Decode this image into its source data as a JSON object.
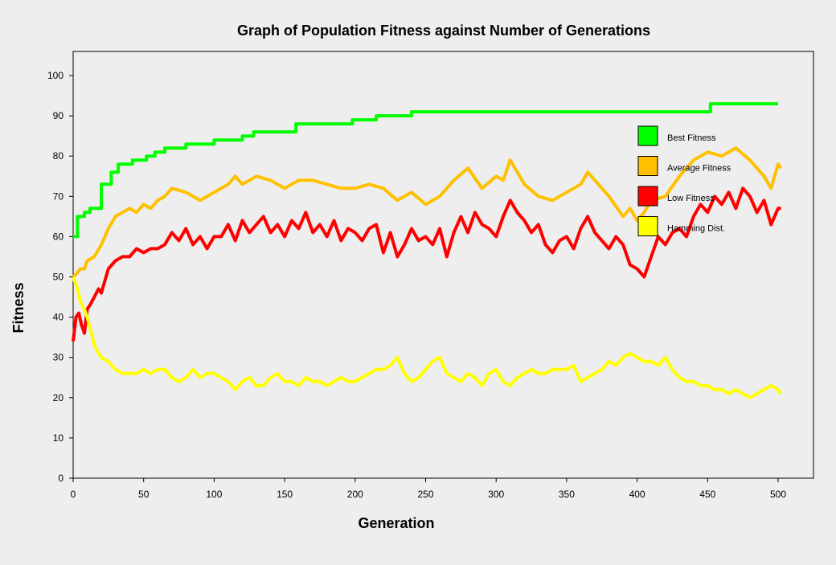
{
  "chart_data": {
    "type": "line",
    "title": "Graph of Population Fitness against Number of Generations",
    "xlabel": "Generation",
    "ylabel": "Fitness",
    "xlim": [
      0,
      520
    ],
    "ylim": [
      0,
      106
    ],
    "x_ticks": [
      0,
      50,
      100,
      150,
      200,
      250,
      300,
      350,
      400,
      450,
      500
    ],
    "y_ticks": [
      0,
      10,
      20,
      30,
      40,
      50,
      60,
      70,
      80,
      90,
      100
    ],
    "x_tick_labels": [
      "0",
      "50",
      "100",
      "150",
      "200",
      "250",
      "300",
      "350",
      "400",
      "450",
      "500"
    ],
    "y_tick_labels": [
      "0",
      "10",
      "20",
      "30",
      "40",
      "50",
      "60",
      "70",
      "80",
      "90",
      "100"
    ],
    "grid": false,
    "legend_position": "top-right",
    "series": [
      {
        "name": "Best Fitness",
        "color": "#00ff00",
        "step": true,
        "x": [
          0,
          3,
          8,
          12,
          20,
          27,
          32,
          42,
          52,
          58,
          65,
          70,
          80,
          100,
          110,
          120,
          128,
          140,
          158,
          175,
          198,
          205,
          215,
          235,
          240,
          300,
          350,
          400,
          448,
          452,
          500
        ],
        "y": [
          60,
          65,
          66,
          67,
          73,
          76,
          78,
          79,
          80,
          81,
          82,
          82,
          83,
          84,
          84,
          85,
          86,
          86,
          88,
          88,
          89,
          89,
          90,
          90,
          91,
          91,
          91,
          91,
          91,
          93,
          93
        ]
      },
      {
        "name": "Average Fitness",
        "color": "#ffc000",
        "x": [
          0,
          3,
          5,
          8,
          10,
          15,
          20,
          25,
          30,
          35,
          40,
          45,
          50,
          55,
          60,
          65,
          70,
          80,
          90,
          100,
          110,
          115,
          120,
          130,
          140,
          150,
          160,
          170,
          180,
          190,
          200,
          210,
          220,
          230,
          240,
          250,
          260,
          270,
          280,
          290,
          300,
          305,
          310,
          320,
          330,
          340,
          350,
          360,
          365,
          370,
          380,
          390,
          395,
          400,
          405,
          410,
          420,
          430,
          440,
          450,
          460,
          470,
          480,
          490,
          495,
          500,
          502
        ],
        "y": [
          50,
          51,
          52,
          52,
          54,
          55,
          58,
          62,
          65,
          66,
          67,
          66,
          68,
          67,
          69,
          70,
          72,
          71,
          69,
          71,
          73,
          75,
          73,
          75,
          74,
          72,
          74,
          74,
          73,
          72,
          72,
          73,
          72,
          69,
          71,
          68,
          70,
          74,
          77,
          72,
          75,
          74,
          79,
          73,
          70,
          69,
          71,
          73,
          76,
          74,
          70,
          65,
          67,
          64,
          66,
          69,
          70,
          75,
          79,
          81,
          80,
          82,
          79,
          75,
          72,
          78,
          77
        ]
      },
      {
        "name": "Low Fitness",
        "color": "#ff0000",
        "x": [
          0,
          2,
          4,
          6,
          8,
          10,
          12,
          15,
          18,
          20,
          25,
          30,
          35,
          40,
          45,
          50,
          55,
          60,
          65,
          70,
          75,
          80,
          85,
          90,
          95,
          100,
          105,
          110,
          115,
          120,
          125,
          130,
          135,
          140,
          145,
          150,
          155,
          160,
          165,
          170,
          175,
          180,
          185,
          190,
          195,
          200,
          205,
          210,
          215,
          220,
          225,
          230,
          235,
          240,
          245,
          250,
          255,
          260,
          265,
          270,
          275,
          280,
          285,
          290,
          295,
          300,
          305,
          310,
          315,
          320,
          325,
          330,
          335,
          340,
          345,
          350,
          355,
          360,
          365,
          370,
          375,
          380,
          385,
          390,
          395,
          400,
          405,
          410,
          415,
          420,
          425,
          430,
          435,
          440,
          445,
          450,
          455,
          460,
          465,
          470,
          475,
          480,
          485,
          490,
          495,
          500,
          502
        ],
        "y": [
          34,
          40,
          41,
          38,
          36,
          42,
          43,
          45,
          47,
          46,
          52,
          54,
          55,
          55,
          57,
          56,
          57,
          57,
          58,
          61,
          59,
          62,
          58,
          60,
          57,
          60,
          60,
          63,
          59,
          64,
          61,
          63,
          65,
          61,
          63,
          60,
          64,
          62,
          66,
          61,
          63,
          60,
          64,
          59,
          62,
          61,
          59,
          62,
          63,
          56,
          61,
          55,
          58,
          62,
          59,
          60,
          58,
          62,
          55,
          61,
          65,
          61,
          66,
          63,
          62,
          60,
          65,
          69,
          66,
          64,
          61,
          63,
          58,
          56,
          59,
          60,
          57,
          62,
          65,
          61,
          59,
          57,
          60,
          58,
          53,
          52,
          50,
          55,
          60,
          58,
          61,
          62,
          60,
          65,
          68,
          66,
          70,
          68,
          71,
          67,
          72,
          70,
          66,
          69,
          63,
          67,
          67
        ]
      },
      {
        "name": "Hamming Dist.",
        "color": "#ffff00",
        "x": [
          0,
          3,
          5,
          8,
          10,
          13,
          15,
          18,
          20,
          25,
          30,
          35,
          40,
          45,
          50,
          55,
          60,
          65,
          70,
          75,
          80,
          85,
          90,
          95,
          100,
          105,
          110,
          115,
          120,
          125,
          130,
          135,
          140,
          145,
          150,
          155,
          160,
          165,
          170,
          175,
          180,
          185,
          190,
          195,
          200,
          205,
          210,
          215,
          220,
          225,
          230,
          235,
          240,
          245,
          250,
          255,
          260,
          265,
          270,
          275,
          280,
          285,
          290,
          295,
          300,
          305,
          310,
          315,
          320,
          325,
          330,
          335,
          340,
          345,
          350,
          355,
          360,
          365,
          370,
          375,
          380,
          385,
          390,
          395,
          400,
          405,
          410,
          415,
          420,
          425,
          430,
          435,
          440,
          445,
          450,
          455,
          460,
          465,
          470,
          475,
          480,
          485,
          490,
          495,
          500,
          502
        ],
        "y": [
          50,
          47,
          44,
          42,
          40,
          36,
          33,
          31,
          30,
          29,
          27,
          26,
          26,
          26,
          27,
          26,
          27,
          27,
          25,
          24,
          25,
          27,
          25,
          26,
          26,
          25,
          24,
          22,
          24,
          25,
          23,
          23,
          25,
          26,
          24,
          24,
          23,
          25,
          24,
          24,
          23,
          24,
          25,
          24,
          24,
          25,
          26,
          27,
          27,
          28,
          30,
          26,
          24,
          25,
          27,
          29,
          30,
          26,
          25,
          24,
          26,
          25,
          23,
          26,
          27,
          24,
          23,
          25,
          26,
          27,
          26,
          26,
          27,
          27,
          27,
          28,
          24,
          25,
          26,
          27,
          29,
          28,
          30,
          31,
          30,
          29,
          29,
          28,
          30,
          27,
          25,
          24,
          24,
          23,
          23,
          22,
          22,
          21,
          22,
          21,
          20,
          21,
          22,
          23,
          22,
          21
        ]
      }
    ]
  }
}
